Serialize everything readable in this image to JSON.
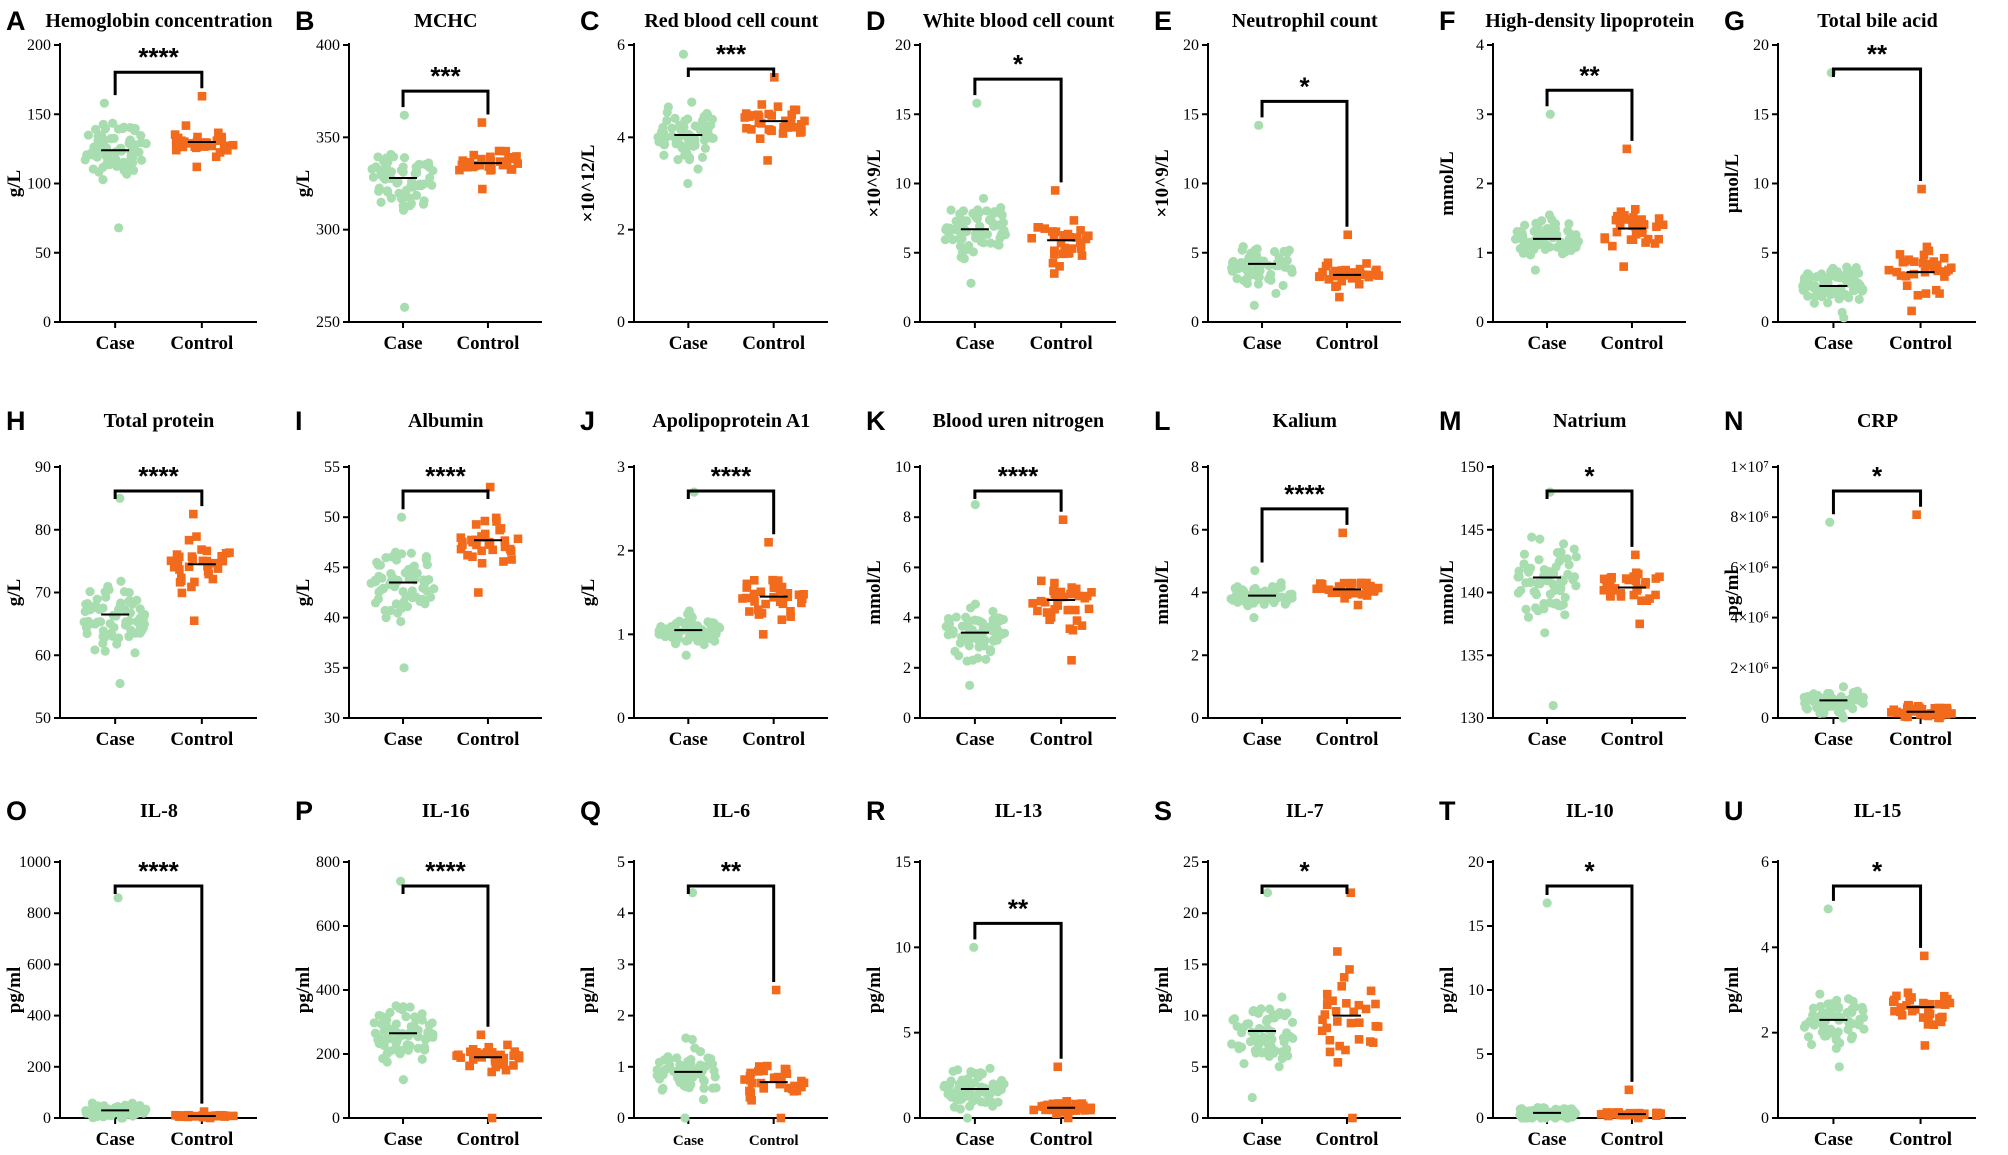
{
  "figure": {
    "panels_count": 21,
    "case_color": "#a8ddb0",
    "control_color": "#f26b1d"
  },
  "chart_data": [
    {
      "letter": "A",
      "type": "scatter",
      "title": "Hemoglobin concentration",
      "ylabel": "g/L",
      "ylim": [
        0,
        200
      ],
      "ticks": [
        0,
        50,
        100,
        150,
        200
      ],
      "tick_labels": [
        "0",
        "50",
        "100",
        "150",
        "200"
      ],
      "categories": [
        "Case",
        "Control"
      ],
      "case_median": 124,
      "control_median": 130,
      "case_range": [
        68,
        158
      ],
      "control_range": [
        112,
        163
      ],
      "case_n": 70,
      "control_n": 34,
      "sig": "****"
    },
    {
      "letter": "B",
      "type": "scatter",
      "title": "MCHC",
      "ylabel": "g/L",
      "ylim": [
        250,
        400
      ],
      "ticks": [
        250,
        300,
        350,
        400
      ],
      "tick_labels": [
        "250",
        "300",
        "350",
        "400"
      ],
      "categories": [
        "Case",
        "Control"
      ],
      "case_median": 328,
      "control_median": 336,
      "case_range": [
        258,
        362
      ],
      "control_range": [
        322,
        358
      ],
      "case_n": 70,
      "control_n": 34,
      "sig": "***"
    },
    {
      "letter": "C",
      "type": "scatter",
      "title": "Red blood cell count",
      "ylabel": "×10^12/L",
      "ylim": [
        0,
        6
      ],
      "ticks": [
        0,
        2,
        4,
        6
      ],
      "tick_labels": [
        "0",
        "2",
        "4",
        "6"
      ],
      "categories": [
        "Case",
        "Control"
      ],
      "case_median": 4.05,
      "control_median": 4.35,
      "case_range": [
        3.0,
        5.8
      ],
      "control_range": [
        3.5,
        5.3
      ],
      "case_n": 70,
      "control_n": 34,
      "sig": "***"
    },
    {
      "letter": "D",
      "type": "scatter",
      "title": "White blood cell count",
      "ylabel": "×10^9/L",
      "ylim": [
        0,
        20
      ],
      "ticks": [
        0,
        5,
        10,
        15,
        20
      ],
      "tick_labels": [
        "0",
        "5",
        "10",
        "15",
        "20"
      ],
      "categories": [
        "Case",
        "Control"
      ],
      "case_median": 6.7,
      "control_median": 5.9,
      "case_range": [
        2.8,
        15.8
      ],
      "control_range": [
        3.5,
        9.5
      ],
      "case_n": 70,
      "control_n": 34,
      "sig": "*"
    },
    {
      "letter": "E",
      "type": "scatter",
      "title": "Neutrophil count",
      "ylabel": "×10^9/L",
      "ylim": [
        0,
        20
      ],
      "ticks": [
        0,
        5,
        10,
        15,
        20
      ],
      "tick_labels": [
        "0",
        "5",
        "10",
        "15",
        "20"
      ],
      "categories": [
        "Case",
        "Control"
      ],
      "case_median": 4.2,
      "control_median": 3.4,
      "case_range": [
        1.2,
        14.2
      ],
      "control_range": [
        1.8,
        6.3
      ],
      "case_n": 70,
      "control_n": 34,
      "sig": "*"
    },
    {
      "letter": "F",
      "type": "scatter",
      "title": "High-density lipoprotein",
      "ylabel": "mmol/L",
      "ylim": [
        0,
        4
      ],
      "ticks": [
        0,
        1,
        2,
        3,
        4
      ],
      "tick_labels": [
        "0",
        "1",
        "2",
        "3",
        "4"
      ],
      "categories": [
        "Case",
        "Control"
      ],
      "case_median": 1.2,
      "control_median": 1.35,
      "case_range": [
        0.75,
        3.0
      ],
      "control_range": [
        0.8,
        2.5
      ],
      "case_n": 70,
      "control_n": 34,
      "sig": "**"
    },
    {
      "letter": "G",
      "type": "scatter",
      "title": "Total bile acid",
      "ylabel": "μmol/L",
      "ylim": [
        0,
        20
      ],
      "ticks": [
        0,
        5,
        10,
        15,
        20
      ],
      "tick_labels": [
        "0",
        "5",
        "10",
        "15",
        "20"
      ],
      "categories": [
        "Case",
        "Control"
      ],
      "case_median": 2.6,
      "control_median": 3.6,
      "case_range": [
        0.3,
        18
      ],
      "control_range": [
        0.8,
        9.6
      ],
      "case_n": 70,
      "control_n": 34,
      "sig": "**"
    },
    {
      "letter": "H",
      "type": "scatter",
      "title": "Total protein",
      "ylabel": "g/L",
      "ylim": [
        50,
        90
      ],
      "ticks": [
        50,
        60,
        70,
        80,
        90
      ],
      "tick_labels": [
        "50",
        "60",
        "70",
        "80",
        "90"
      ],
      "categories": [
        "Case",
        "Control"
      ],
      "case_median": 66.5,
      "control_median": 74.5,
      "case_range": [
        55.5,
        85
      ],
      "control_range": [
        65.5,
        82.5
      ],
      "case_n": 70,
      "control_n": 34,
      "sig": "****"
    },
    {
      "letter": "I",
      "type": "scatter",
      "title": "Albumin",
      "ylabel": "g/L",
      "ylim": [
        30,
        55
      ],
      "ticks": [
        30,
        35,
        40,
        45,
        50,
        55
      ],
      "tick_labels": [
        "30",
        "35",
        "40",
        "45",
        "50",
        "55"
      ],
      "categories": [
        "Case",
        "Control"
      ],
      "case_median": 43.5,
      "control_median": 47.7,
      "case_range": [
        35,
        50
      ],
      "control_range": [
        42.5,
        53
      ],
      "case_n": 70,
      "control_n": 34,
      "sig": "****"
    },
    {
      "letter": "J",
      "type": "scatter",
      "title": "Apolipoprotein A1",
      "ylabel": "g/L",
      "ylim": [
        0,
        3
      ],
      "ticks": [
        0,
        1,
        2,
        3
      ],
      "tick_labels": [
        "0",
        "1",
        "2",
        "3"
      ],
      "categories": [
        "Case",
        "Control"
      ],
      "case_median": 1.05,
      "control_median": 1.45,
      "case_range": [
        0.75,
        2.7
      ],
      "control_range": [
        1.0,
        2.1
      ],
      "case_n": 70,
      "control_n": 34,
      "sig": "****"
    },
    {
      "letter": "K",
      "type": "scatter",
      "title": "Blood uren nitrogen",
      "ylabel": "mmol/L",
      "ylim": [
        0,
        10
      ],
      "ticks": [
        0,
        2,
        4,
        6,
        8,
        10
      ],
      "tick_labels": [
        "0",
        "2",
        "4",
        "6",
        "8",
        "10"
      ],
      "categories": [
        "Case",
        "Control"
      ],
      "case_median": 3.4,
      "control_median": 4.7,
      "case_range": [
        1.3,
        8.5
      ],
      "control_range": [
        2.3,
        7.9
      ],
      "case_n": 70,
      "control_n": 34,
      "sig": "****"
    },
    {
      "letter": "L",
      "type": "scatter",
      "title": "Kalium",
      "ylabel": "mmol/L",
      "ylim": [
        0,
        8
      ],
      "ticks": [
        0,
        2,
        4,
        6,
        8
      ],
      "tick_labels": [
        "0",
        "2",
        "4",
        "6",
        "8"
      ],
      "categories": [
        "Case",
        "Control"
      ],
      "case_median": 3.9,
      "control_median": 4.1,
      "case_range": [
        3.2,
        4.7
      ],
      "control_range": [
        3.6,
        5.9
      ],
      "case_n": 70,
      "control_n": 34,
      "sig": "****"
    },
    {
      "letter": "M",
      "type": "scatter",
      "title": "Natrium",
      "ylabel": "mmol/L",
      "ylim": [
        130,
        150
      ],
      "ticks": [
        130,
        135,
        140,
        145,
        150
      ],
      "tick_labels": [
        "130",
        "135",
        "140",
        "145",
        "150"
      ],
      "categories": [
        "Case",
        "Control"
      ],
      "case_median": 141.2,
      "control_median": 140.4,
      "case_range": [
        131,
        148
      ],
      "control_range": [
        137.5,
        143
      ],
      "case_n": 70,
      "control_n": 34,
      "sig": "*"
    },
    {
      "letter": "N",
      "type": "scatter",
      "title": "CRP",
      "ylabel": "pg/ml",
      "ylim": [
        0,
        10000000
      ],
      "ticks": [
        0,
        2000000,
        4000000,
        6000000,
        8000000,
        10000000
      ],
      "tick_labels": [
        "0",
        "2×10⁶",
        "4×10⁶",
        "6×10⁶",
        "8×10⁶",
        "1×10⁷"
      ],
      "categories": [
        "Case",
        "Control"
      ],
      "case_median": 700000,
      "control_median": 250000,
      "case_range": [
        0,
        7800000
      ],
      "control_range": [
        0,
        8100000
      ],
      "case_n": 70,
      "control_n": 34,
      "sig": "*"
    },
    {
      "letter": "O",
      "type": "scatter",
      "title": "IL-8",
      "ylabel": "pg/ml",
      "ylim": [
        0,
        1000
      ],
      "ticks": [
        0,
        200,
        400,
        600,
        800,
        1000
      ],
      "tick_labels": [
        "0",
        "200",
        "400",
        "600",
        "800",
        "1000"
      ],
      "categories": [
        "Case",
        "Control"
      ],
      "case_median": 30,
      "control_median": 8,
      "case_range": [
        0,
        860
      ],
      "control_range": [
        0,
        25
      ],
      "case_n": 70,
      "control_n": 34,
      "sig": "****"
    },
    {
      "letter": "P",
      "type": "scatter",
      "title": "IL-16",
      "ylabel": "pg/ml",
      "ylim": [
        0,
        800
      ],
      "ticks": [
        0,
        200,
        400,
        600,
        800
      ],
      "tick_labels": [
        "0",
        "200",
        "400",
        "600",
        "800"
      ],
      "categories": [
        "Case",
        "Control"
      ],
      "case_median": 265,
      "control_median": 190,
      "case_range": [
        120,
        740
      ],
      "control_range": [
        0,
        260
      ],
      "case_n": 70,
      "control_n": 34,
      "sig": "****"
    },
    {
      "letter": "Q",
      "type": "scatter",
      "title": "IL-6",
      "ylabel": "pg/ml",
      "ylim": [
        0,
        5
      ],
      "ticks": [
        0,
        1,
        2,
        3,
        4,
        5
      ],
      "tick_labels": [
        "0",
        "1",
        "2",
        "3",
        "4",
        "5"
      ],
      "categories": [
        "Case",
        "Control"
      ],
      "case_median": 0.9,
      "control_median": 0.7,
      "case_range": [
        0,
        4.4
      ],
      "control_range": [
        0,
        2.5
      ],
      "case_n": 70,
      "control_n": 34,
      "sig": "**"
    },
    {
      "letter": "R",
      "type": "scatter",
      "title": "IL-13",
      "ylabel": "pg/ml",
      "ylim": [
        0,
        15
      ],
      "ticks": [
        0,
        5,
        10,
        15
      ],
      "tick_labels": [
        "0",
        "5",
        "10",
        "15"
      ],
      "categories": [
        "Case",
        "Control"
      ],
      "case_median": 1.7,
      "control_median": 0.6,
      "case_range": [
        0,
        10
      ],
      "control_range": [
        0,
        3
      ],
      "case_n": 70,
      "control_n": 34,
      "sig": "**"
    },
    {
      "letter": "S",
      "type": "scatter",
      "title": "IL-7",
      "ylabel": "pg/ml",
      "ylim": [
        0,
        25
      ],
      "ticks": [
        0,
        5,
        10,
        15,
        20,
        25
      ],
      "tick_labels": [
        "0",
        "5",
        "10",
        "15",
        "20",
        "25"
      ],
      "categories": [
        "Case",
        "Control"
      ],
      "case_median": 8.5,
      "control_median": 10,
      "case_range": [
        2,
        22
      ],
      "control_range": [
        0,
        22
      ],
      "case_n": 70,
      "control_n": 34,
      "sig": "*"
    },
    {
      "letter": "T",
      "type": "scatter",
      "title": "IL-10",
      "ylabel": "pg/ml",
      "ylim": [
        0,
        20
      ],
      "ticks": [
        0,
        5,
        10,
        15,
        20
      ],
      "tick_labels": [
        "0",
        "5",
        "10",
        "15",
        "20"
      ],
      "categories": [
        "Case",
        "Control"
      ],
      "case_median": 0.4,
      "control_median": 0.3,
      "case_range": [
        0,
        16.8
      ],
      "control_range": [
        0,
        2.2
      ],
      "case_n": 70,
      "control_n": 34,
      "sig": "*"
    },
    {
      "letter": "U",
      "type": "scatter",
      "title": "IL-15",
      "ylabel": "pg/ml",
      "ylim": [
        0,
        6
      ],
      "ticks": [
        0,
        2,
        4,
        6
      ],
      "tick_labels": [
        "0",
        "2",
        "4",
        "6"
      ],
      "categories": [
        "Case",
        "Control"
      ],
      "case_median": 2.3,
      "control_median": 2.6,
      "case_range": [
        1.2,
        4.9
      ],
      "control_range": [
        1.7,
        3.8
      ],
      "case_n": 70,
      "control_n": 34,
      "sig": "*"
    }
  ]
}
